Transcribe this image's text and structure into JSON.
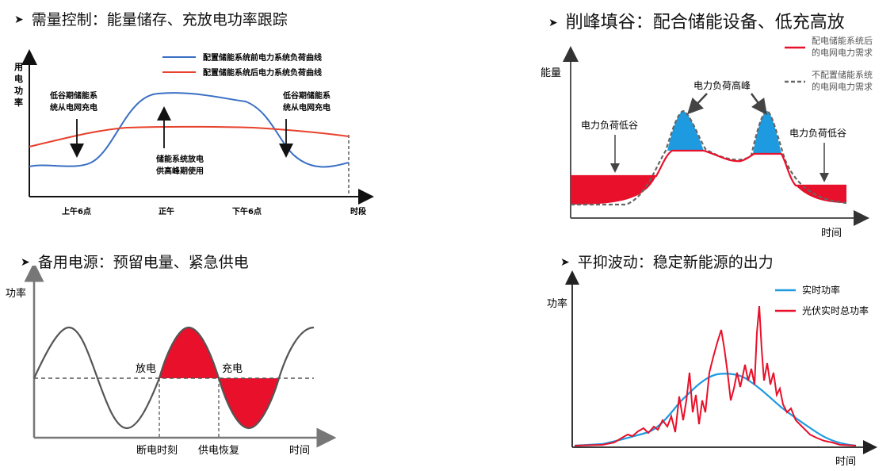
{
  "panels": [
    {
      "heading": "需量控制：能量储存、充放电功率跟踪",
      "ylabel": "用电功率",
      "legend": [
        "配置储能系统前电力系统负荷曲线",
        "配置储能系统后电力系统负荷曲线"
      ],
      "annotations": [
        "低谷期储能系统统从电网充电",
        "储能系统放电供高峰期使用",
        "低谷期储能系统从电网充电"
      ],
      "xticks": [
        "上午6点",
        "正午",
        "下午6点",
        "时段"
      ],
      "colors": {
        "before": "#3a6fc4",
        "after": "#e8412c"
      }
    },
    {
      "heading": "削峰填谷：配合储能设备、低充高放",
      "ylabel": "能量",
      "legend": [
        "配电储能系统后的电网电力需求",
        "不配置储能系统的电网电力需求"
      ],
      "annotations": [
        "电力负荷高峰",
        "电力负荷低谷",
        "电力负荷低谷"
      ],
      "xlabel": "时间",
      "colors": {
        "with": "#e8102a",
        "fill_valley": "#e8102a",
        "fill_peak": "#1e9be0",
        "without": "#666666"
      }
    },
    {
      "heading": "备用电源：预留电量、紧急供电",
      "ylabel": "功率",
      "annotations": [
        "放电",
        "充电"
      ],
      "xticks": [
        "断电时刻",
        "供电恢复",
        "时间"
      ],
      "colors": {
        "wave": "#555555",
        "fill": "#e8102a"
      }
    },
    {
      "heading": "平抑波动：稳定新能源的出力",
      "ylabel": "功率",
      "legend": [
        "实时功率",
        "光伏实时总功率"
      ],
      "xlabel": "时间",
      "colors": {
        "realtime": "#1e9be0",
        "pv": "#e8102a"
      }
    }
  ]
}
